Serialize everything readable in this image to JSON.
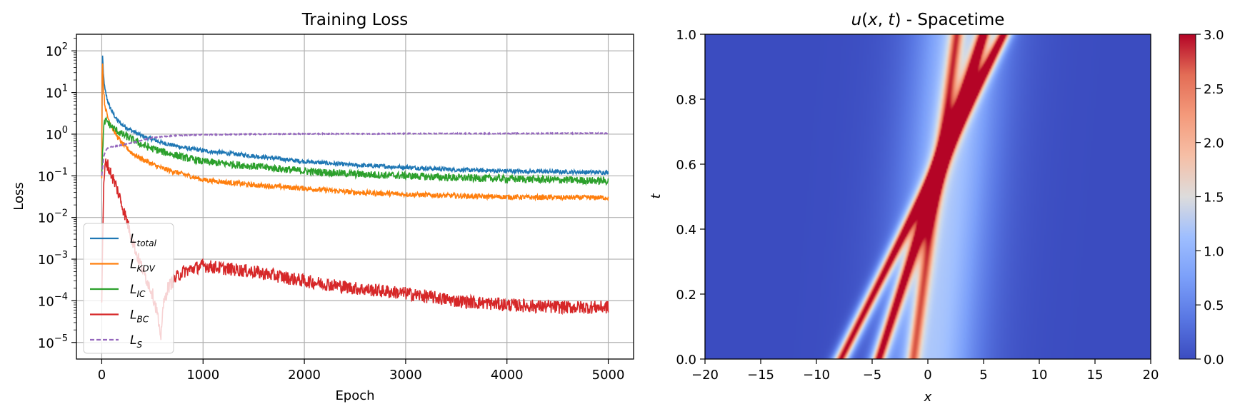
{
  "chart_data": [
    {
      "type": "line",
      "title": "Training Loss",
      "xlabel": "Epoch",
      "ylabel": "Loss",
      "yscale": "log",
      "xlim": [
        -250,
        5250
      ],
      "ylim": [
        4e-06,
        250
      ],
      "xticks": [
        0,
        1000,
        2000,
        3000,
        4000,
        5000
      ],
      "yticks": [
        {
          "value": 1e-05,
          "base": "10",
          "exp": "−5"
        },
        {
          "value": 0.0001,
          "base": "10",
          "exp": "−4"
        },
        {
          "value": 0.001,
          "base": "10",
          "exp": "−3"
        },
        {
          "value": 0.01,
          "base": "10",
          "exp": "−2"
        },
        {
          "value": 0.1,
          "base": "10",
          "exp": "−1"
        },
        {
          "value": 1,
          "base": "10",
          "exp": "0"
        },
        {
          "value": 10,
          "base": "10",
          "exp": "1"
        },
        {
          "value": 100,
          "base": "10",
          "exp": "2"
        }
      ],
      "grid": true,
      "legend_position": "lower-left",
      "series": [
        {
          "name": "L",
          "sub": "total",
          "color": "#1f77b4",
          "dashed": false,
          "x": [
            0,
            5,
            15,
            30,
            60,
            100,
            150,
            200,
            300,
            400,
            500,
            600,
            800,
            1000,
            1500,
            2000,
            2500,
            3000,
            3500,
            4000,
            4500,
            5000
          ],
          "y": [
            0.1,
            110,
            30,
            12,
            6,
            3.5,
            2.2,
            1.7,
            1.2,
            0.9,
            0.75,
            0.62,
            0.48,
            0.4,
            0.3,
            0.22,
            0.18,
            0.16,
            0.14,
            0.13,
            0.125,
            0.12
          ]
        },
        {
          "name": "L",
          "sub": "KDV",
          "color": "#ff7f0e",
          "dashed": false,
          "x": [
            0,
            5,
            15,
            30,
            60,
            100,
            150,
            200,
            300,
            400,
            500,
            600,
            800,
            1000,
            1500,
            2000,
            2500,
            3000,
            3500,
            4000,
            4500,
            5000
          ],
          "y": [
            0.1,
            100,
            15,
            5,
            2.5,
            1.5,
            0.9,
            0.6,
            0.35,
            0.25,
            0.19,
            0.15,
            0.11,
            0.08,
            0.06,
            0.05,
            0.04,
            0.036,
            0.033,
            0.031,
            0.03,
            0.03
          ]
        },
        {
          "name": "L",
          "sub": "IC",
          "color": "#2ca02c",
          "dashed": false,
          "x": [
            0,
            10,
            20,
            30,
            50,
            70,
            100,
            150,
            200,
            300,
            400,
            500,
            600,
            800,
            1000,
            1500,
            2000,
            2500,
            3000,
            3500,
            4000,
            4500,
            5000
          ],
          "y": [
            0.1,
            0.5,
            1.5,
            2.0,
            2.1,
            1.8,
            1.5,
            1.2,
            1.0,
            0.75,
            0.55,
            0.45,
            0.38,
            0.28,
            0.22,
            0.17,
            0.13,
            0.11,
            0.1,
            0.09,
            0.085,
            0.08,
            0.075
          ]
        },
        {
          "name": "L",
          "sub": "BC",
          "color": "#d62728",
          "dashed": false,
          "x": [
            0,
            10,
            20,
            30,
            40,
            50,
            70,
            100,
            150,
            200,
            250,
            300,
            350,
            400,
            450,
            500,
            550,
            580,
            600,
            650,
            700,
            800,
            1000,
            1200,
            1500,
            2000,
            2500,
            3000,
            3500,
            4000,
            4500,
            5000
          ],
          "y": [
            0.0001,
            0.005,
            0.05,
            0.15,
            0.2,
            0.21,
            0.15,
            0.1,
            0.05,
            0.02,
            0.008,
            0.003,
            0.0012,
            0.0006,
            0.0003,
            0.00015,
            5e-05,
            1e-05,
            6e-05,
            0.0002,
            0.0003,
            0.0005,
            0.0007,
            0.0006,
            0.0005,
            0.0003,
            0.0002,
            0.00015,
            0.0001,
            8e-05,
            7e-05,
            7e-05
          ]
        },
        {
          "name": "L",
          "sub": "S",
          "color": "#9467bd",
          "dashed": true,
          "x": [
            0,
            20,
            50,
            100,
            200,
            300,
            400,
            500,
            700,
            1000,
            1500,
            2000,
            3000,
            4000,
            5000
          ],
          "y": [
            0.1,
            0.3,
            0.45,
            0.5,
            0.55,
            0.62,
            0.72,
            0.82,
            0.92,
            0.97,
            1.0,
            1.02,
            1.03,
            1.04,
            1.05
          ]
        }
      ]
    },
    {
      "type": "heatmap",
      "title_parts": [
        "u",
        "(",
        "x",
        ", ",
        "t",
        ") - Spacetime"
      ],
      "xlabel": "x",
      "ylabel": "t",
      "xlim": [
        -20,
        20
      ],
      "ylim": [
        0,
        1
      ],
      "xticks": [
        "−20",
        "−15",
        "−10",
        "−5",
        "0",
        "5",
        "10",
        "15",
        "20"
      ],
      "yticks": [
        "0.0",
        "0.2",
        "0.4",
        "0.6",
        "0.8",
        "1.0"
      ],
      "colormap": "coolwarm",
      "colorbar_range": [
        0,
        3
      ],
      "colorbar_ticks": [
        "0.0",
        "0.5",
        "1.0",
        "1.5",
        "2.0",
        "2.5",
        "3.0"
      ],
      "features": [
        {
          "kind": "soliton",
          "x0": -7.8,
          "x1": 6.8,
          "amplitude": 3.0
        },
        {
          "kind": "soliton",
          "x0": -4.4,
          "x1": 5.0,
          "amplitude": 3.0
        },
        {
          "kind": "soliton",
          "x0": -1.3,
          "x1": 2.6,
          "amplitude": 1.9
        },
        {
          "kind": "background",
          "center": 0.5,
          "amplitude": 1.0
        }
      ]
    }
  ]
}
